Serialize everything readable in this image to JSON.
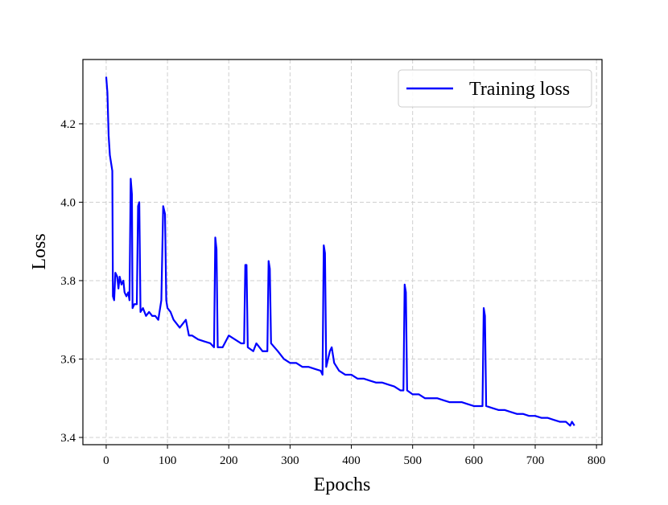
{
  "chart_data": {
    "type": "line",
    "xlabel": "Epochs",
    "ylabel": "Loss",
    "x": [
      0,
      2,
      4,
      6,
      8,
      10,
      11,
      13,
      15,
      18,
      20,
      22,
      25,
      28,
      30,
      33,
      36,
      38,
      40,
      42,
      43,
      46,
      50,
      52,
      54,
      56,
      60,
      65,
      70,
      75,
      80,
      85,
      90,
      93,
      96,
      98,
      100,
      105,
      110,
      115,
      120,
      125,
      130,
      135,
      140,
      150,
      160,
      170,
      176,
      178,
      180,
      182,
      190,
      200,
      210,
      220,
      225,
      227,
      229,
      231,
      240,
      245,
      255,
      263,
      265,
      267,
      269,
      280,
      290,
      300,
      310,
      320,
      330,
      340,
      350,
      353,
      355,
      357,
      359,
      365,
      368,
      372,
      380,
      390,
      400,
      410,
      420,
      430,
      440,
      450,
      460,
      470,
      480,
      485,
      487,
      489,
      491,
      500,
      510,
      520,
      530,
      540,
      550,
      560,
      570,
      580,
      590,
      600,
      610,
      614,
      616,
      618,
      620,
      630,
      640,
      650,
      660,
      670,
      680,
      690,
      700,
      710,
      720,
      730,
      740,
      750,
      757,
      760,
      764
    ],
    "series": [
      {
        "name": "Training loss",
        "color": "#0000ff",
        "values": [
          4.32,
          4.28,
          4.17,
          4.12,
          4.1,
          4.08,
          3.76,
          3.75,
          3.82,
          3.81,
          3.78,
          3.81,
          3.79,
          3.8,
          3.77,
          3.76,
          3.77,
          3.75,
          4.06,
          4.02,
          3.73,
          3.74,
          3.74,
          3.99,
          4.0,
          3.72,
          3.73,
          3.71,
          3.72,
          3.71,
          3.71,
          3.7,
          3.75,
          3.99,
          3.97,
          3.75,
          3.73,
          3.72,
          3.7,
          3.69,
          3.68,
          3.69,
          3.7,
          3.66,
          3.66,
          3.65,
          3.645,
          3.64,
          3.63,
          3.91,
          3.88,
          3.63,
          3.63,
          3.66,
          3.65,
          3.64,
          3.64,
          3.84,
          3.84,
          3.63,
          3.62,
          3.64,
          3.62,
          3.62,
          3.85,
          3.83,
          3.64,
          3.62,
          3.6,
          3.59,
          3.59,
          3.58,
          3.58,
          3.575,
          3.57,
          3.56,
          3.89,
          3.87,
          3.58,
          3.62,
          3.63,
          3.59,
          3.57,
          3.56,
          3.56,
          3.55,
          3.55,
          3.545,
          3.54,
          3.54,
          3.535,
          3.53,
          3.52,
          3.52,
          3.79,
          3.77,
          3.52,
          3.51,
          3.51,
          3.5,
          3.5,
          3.5,
          3.495,
          3.49,
          3.49,
          3.49,
          3.485,
          3.48,
          3.48,
          3.48,
          3.73,
          3.71,
          3.48,
          3.475,
          3.47,
          3.47,
          3.465,
          3.46,
          3.46,
          3.455,
          3.455,
          3.45,
          3.45,
          3.445,
          3.44,
          3.44,
          3.43,
          3.44,
          3.43
        ]
      }
    ],
    "xlim": [
      -38,
      809
    ],
    "ylim": [
      3.3815,
      4.364
    ],
    "xticks": [
      0,
      100,
      200,
      300,
      400,
      500,
      600,
      700,
      800
    ],
    "yticks": [
      3.4,
      3.6,
      3.8,
      {
        "value": 4,
        "label": "4.0"
      },
      4.2
    ],
    "grid": true,
    "legend": "upper right"
  }
}
